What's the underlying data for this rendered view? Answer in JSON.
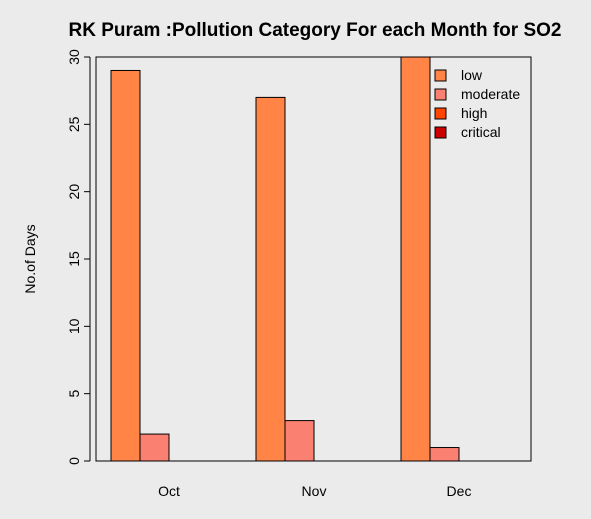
{
  "chart_data": {
    "type": "bar",
    "title": "RK Puram :Pollution Category For each Month for SO2",
    "xlabel": "",
    "ylabel": "No.of Days",
    "categories": [
      "Oct",
      "Nov",
      "Dec"
    ],
    "series": [
      {
        "name": "low",
        "color": "#ff8445",
        "values": [
          29,
          27,
          30
        ]
      },
      {
        "name": "moderate",
        "color": "#fa8072",
        "values": [
          2,
          3,
          1
        ]
      },
      {
        "name": "high",
        "color": "#ff4500",
        "values": [
          0,
          0,
          0
        ]
      },
      {
        "name": "critical",
        "color": "#cc0000",
        "values": [
          0,
          0,
          0
        ]
      }
    ],
    "ylim": [
      0,
      30
    ],
    "yticks": [
      0,
      5,
      10,
      15,
      20,
      25,
      30
    ],
    "grid": false,
    "legend_position": "top-right"
  }
}
